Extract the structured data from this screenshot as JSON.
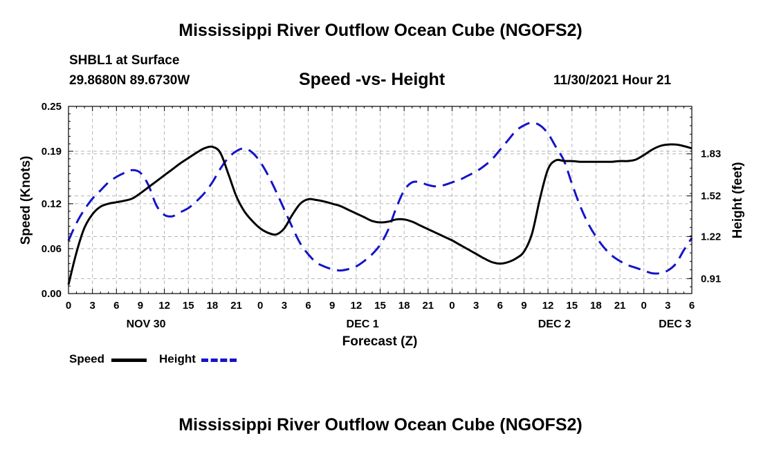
{
  "page": {
    "title": "Mississippi River Outflow Ocean Cube (NGOFS2)",
    "station": "SHBL1 at Surface",
    "coords": "29.8680N  89.6730W",
    "subtitle": "Speed -vs- Height",
    "timestamp": "11/30/2021 Hour 21",
    "footer_title": "Mississippi River Outflow Ocean Cube (NGOFS2)"
  },
  "legend": {
    "speed_label": "Speed",
    "height_label": "Height"
  },
  "colors": {
    "speed": "#000000",
    "height": "#1414c8",
    "grid": "#b4b4b4"
  },
  "chart_data": {
    "type": "line",
    "title": "Speed -vs- Height",
    "xlabel": "Forecast (Z)",
    "ylabel": "Speed (Knots)",
    "y2label": "Height (feet)",
    "grid": true,
    "x_unit": "hours since NOV 30 00Z",
    "xlim": [
      0,
      78
    ],
    "ylim": [
      0,
      0.25
    ],
    "y2lim": [
      0.8,
      2.18
    ],
    "x_ticks": [
      0,
      3,
      6,
      9,
      12,
      15,
      18,
      21,
      24,
      27,
      30,
      33,
      36,
      39,
      42,
      45,
      48,
      51,
      54,
      57,
      60,
      63,
      66,
      69,
      72,
      75,
      78
    ],
    "x_tick_labels": [
      "0",
      "3",
      "6",
      "9",
      "12",
      "15",
      "18",
      "21",
      "0",
      "3",
      "6",
      "9",
      "12",
      "15",
      "18",
      "21",
      "0",
      "3",
      "6",
      "9",
      "12",
      "15",
      "18",
      "21",
      "0",
      "3",
      "6"
    ],
    "day_labels": [
      {
        "x": 9.7,
        "label": "NOV 30"
      },
      {
        "x": 36.8,
        "label": "DEC 1"
      },
      {
        "x": 60.8,
        "label": "DEC 2"
      },
      {
        "x": 75.9,
        "label": "DEC 3"
      }
    ],
    "y_ticks": [
      0.0,
      0.06,
      0.12,
      0.19,
      0.25
    ],
    "y_tick_labels": [
      "0.00",
      "0.06",
      "0.12",
      "0.19",
      "0.25"
    ],
    "y2_ticks": [
      0.91,
      1.22,
      1.52,
      1.83
    ],
    "y2_tick_labels": [
      "0.91",
      "1.22",
      "1.52",
      "1.83"
    ],
    "series": [
      {
        "name": "Speed",
        "axis": "left",
        "style": "solid",
        "x": [
          0,
          1,
          2,
          3,
          4,
          5,
          6,
          7,
          8,
          9,
          10,
          11,
          12,
          13,
          14,
          15,
          16,
          17,
          18,
          19,
          20,
          21,
          22,
          23,
          24,
          25,
          26,
          27,
          28,
          29,
          30,
          31,
          32,
          33,
          34,
          35,
          36,
          37,
          38,
          39,
          40,
          41,
          42,
          43,
          44,
          45,
          46,
          47,
          48,
          49,
          50,
          51,
          52,
          53,
          54,
          55,
          56,
          57,
          58,
          59,
          60,
          61,
          62,
          63,
          64,
          65,
          66,
          67,
          68,
          69,
          70,
          71,
          72,
          73,
          74,
          75,
          76,
          77,
          78
        ],
        "values": [
          0.012,
          0.055,
          0.088,
          0.106,
          0.116,
          0.12,
          0.122,
          0.124,
          0.127,
          0.134,
          0.142,
          0.15,
          0.158,
          0.166,
          0.174,
          0.181,
          0.188,
          0.194,
          0.196,
          0.188,
          0.16,
          0.13,
          0.11,
          0.097,
          0.087,
          0.081,
          0.079,
          0.087,
          0.105,
          0.12,
          0.126,
          0.125,
          0.123,
          0.12,
          0.117,
          0.112,
          0.107,
          0.102,
          0.097,
          0.095,
          0.096,
          0.099,
          0.099,
          0.096,
          0.091,
          0.086,
          0.081,
          0.076,
          0.071,
          0.065,
          0.059,
          0.053,
          0.047,
          0.042,
          0.04,
          0.042,
          0.047,
          0.056,
          0.08,
          0.127,
          0.166,
          0.178,
          0.177,
          0.177,
          0.176,
          0.176,
          0.176,
          0.176,
          0.176,
          0.177,
          0.177,
          0.179,
          0.185,
          0.192,
          0.197,
          0.199,
          0.199,
          0.197,
          0.194
        ]
      },
      {
        "name": "Height",
        "axis": "right",
        "style": "dashed",
        "x": [
          0,
          1,
          2,
          3,
          4,
          5,
          6,
          7,
          8,
          9,
          10,
          11,
          12,
          13,
          14,
          15,
          16,
          17,
          18,
          19,
          20,
          21,
          22,
          23,
          24,
          25,
          26,
          27,
          28,
          29,
          30,
          31,
          32,
          33,
          34,
          35,
          36,
          37,
          38,
          39,
          40,
          41,
          42,
          43,
          44,
          45,
          46,
          47,
          48,
          49,
          50,
          51,
          52,
          53,
          54,
          55,
          56,
          57,
          58,
          59,
          60,
          61,
          62,
          63,
          64,
          65,
          66,
          67,
          68,
          69,
          70,
          71,
          72,
          73,
          74,
          75,
          76,
          77,
          78
        ],
        "values": [
          1.19,
          1.32,
          1.42,
          1.5,
          1.56,
          1.62,
          1.66,
          1.69,
          1.71,
          1.69,
          1.6,
          1.45,
          1.38,
          1.37,
          1.4,
          1.43,
          1.48,
          1.54,
          1.62,
          1.72,
          1.8,
          1.85,
          1.87,
          1.84,
          1.77,
          1.67,
          1.55,
          1.42,
          1.29,
          1.17,
          1.09,
          1.03,
          1.0,
          0.98,
          0.97,
          0.98,
          1.0,
          1.04,
          1.09,
          1.16,
          1.27,
          1.43,
          1.56,
          1.62,
          1.62,
          1.6,
          1.59,
          1.6,
          1.62,
          1.64,
          1.67,
          1.7,
          1.74,
          1.79,
          1.86,
          1.93,
          2.0,
          2.04,
          2.06,
          2.04,
          1.98,
          1.88,
          1.78,
          1.61,
          1.45,
          1.32,
          1.22,
          1.14,
          1.08,
          1.04,
          1.01,
          0.99,
          0.97,
          0.95,
          0.95,
          0.97,
          1.02,
          1.12,
          1.21
        ]
      }
    ]
  }
}
